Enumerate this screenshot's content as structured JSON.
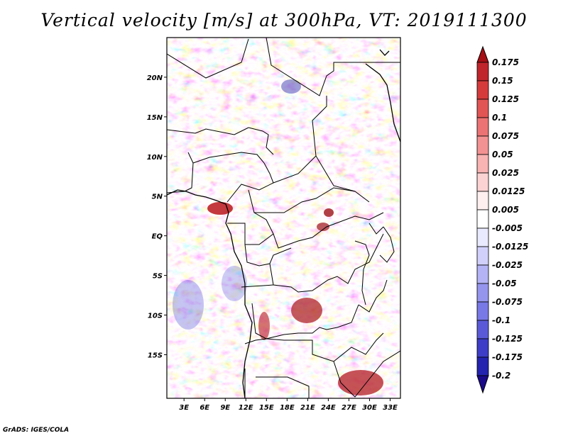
{
  "title": "Vertical velocity [m/s] at 300hPa, VT: 2019111300",
  "credit": "GrADS: IGES/COLA",
  "map": {
    "lon_ticks": [
      "3E",
      "6E",
      "9E",
      "12E",
      "15E",
      "18E",
      "21E",
      "24E",
      "27E",
      "30E",
      "33E"
    ],
    "lat_ticks": [
      "20N",
      "15N",
      "10N",
      "5N",
      "EQ",
      "5S",
      "10S",
      "15S"
    ],
    "lon_range": [
      0.5,
      34.5
    ],
    "lat_range": [
      -20.5,
      25.0
    ]
  },
  "colorbar": {
    "labels": [
      "0.175",
      "0.15",
      "0.125",
      "0.1",
      "0.075",
      "0.05",
      "0.025",
      "0.0125",
      "0.005",
      "-0.005",
      "-0.0125",
      "-0.025",
      "-0.05",
      "-0.075",
      "-0.1",
      "-0.125",
      "-0.175",
      "-0.2"
    ],
    "colors": [
      "#a50f15",
      "#c0252b",
      "#d63b3b",
      "#e25555",
      "#ec7373",
      "#f39292",
      "#f8b3b3",
      "#fcd3d3",
      "#fff0f0",
      "#ffffff",
      "#eaeaff",
      "#d0d0fb",
      "#b3b3f5",
      "#9595ee",
      "#7878e6",
      "#5a5ad9",
      "#3d3dc7",
      "#2323b0",
      "#10108f"
    ],
    "top_arrow_color": "#a50f15",
    "bottom_arrow_color": "#1a0a8a"
  }
}
